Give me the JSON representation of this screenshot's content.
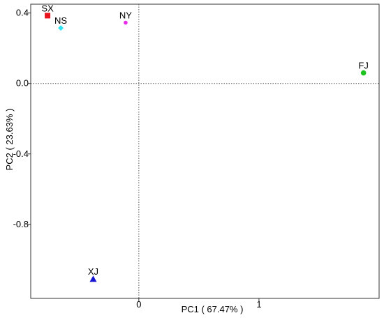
{
  "chart_data": {
    "type": "scatter",
    "title": "",
    "xlabel": "PC1 ( 67.47% )",
    "ylabel": "PC2 ( 23.63% )",
    "xlim": [
      -0.9,
      2.0
    ],
    "ylim": [
      -1.22,
      0.45
    ],
    "xticks": [
      {
        "value": 0,
        "label": "0"
      },
      {
        "value": 1,
        "label": "1"
      }
    ],
    "yticks": [
      {
        "value": 0.4,
        "label": "0.4"
      },
      {
        "value": 0.0,
        "label": "0.0"
      },
      {
        "value": -0.4,
        "label": "-0.4"
      },
      {
        "value": -0.8,
        "label": "-0.8"
      }
    ],
    "reference_lines": {
      "x": 0,
      "y": 0,
      "style": "dotted"
    },
    "grid": false,
    "legend": "none",
    "points": [
      {
        "label": "SX",
        "x": -0.76,
        "y": 0.385,
        "marker": "square",
        "color": "#e8141b"
      },
      {
        "label": "NS",
        "x": -0.65,
        "y": 0.315,
        "marker": "diamond",
        "color": "#2fe3ef"
      },
      {
        "label": "NY",
        "x": -0.11,
        "y": 0.345,
        "marker": "circle",
        "color": "#e62be6"
      },
      {
        "label": "FJ",
        "x": 1.87,
        "y": 0.06,
        "marker": "circle",
        "color": "#1ec41e"
      },
      {
        "label": "XJ",
        "x": -0.38,
        "y": -1.11,
        "marker": "triangle",
        "color": "#1414d2"
      }
    ]
  }
}
